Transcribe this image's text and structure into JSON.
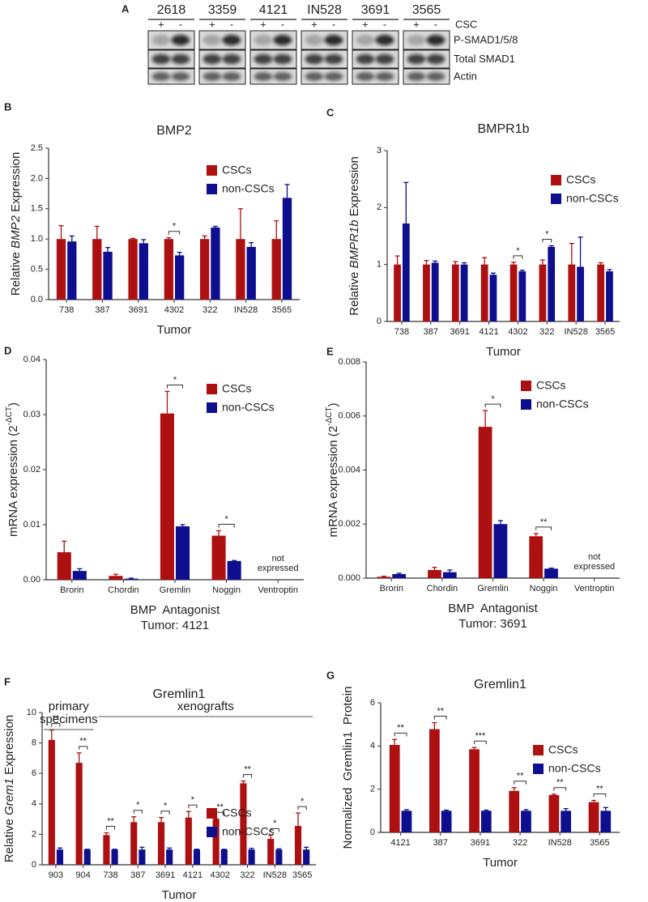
{
  "blot": {
    "panel": "A",
    "samples": [
      "2618",
      "3359",
      "4121",
      "IN528",
      "3691",
      "3565"
    ],
    "signs": [
      "+",
      "-"
    ],
    "row_header": "CSC",
    "rows": [
      "P-SMAD1/5/8",
      "Total SMAD1",
      "Actin"
    ]
  },
  "chart_data": [
    {
      "type": "bar",
      "panel": "B",
      "title": "BMP2",
      "ylabel": [
        {
          "text": "Relative "
        },
        {
          "text": "BMP2",
          "style": "italic"
        },
        {
          "text": " Expression"
        }
      ],
      "xlabel": "Tumor",
      "categories": [
        "738",
        "387",
        "3691",
        "4302",
        "322",
        "IN528",
        "3565"
      ],
      "series": [
        {
          "name": "CSCs",
          "color": "#ad1010",
          "values": [
            1,
            1,
            1,
            1,
            1,
            1,
            1
          ],
          "errors": [
            0.22,
            0.21,
            0.01,
            0.02,
            0.05,
            0.5,
            0.3
          ]
        },
        {
          "name": "non-CSCs",
          "color": "#0d0f8f",
          "values": [
            0.96,
            0.79,
            0.93,
            0.73,
            1.19,
            0.87,
            1.68
          ],
          "errors": [
            0.09,
            0.07,
            0.06,
            0.05,
            0.02,
            0.07,
            0.22
          ]
        }
      ],
      "significance": [
        null,
        null,
        null,
        "*",
        null,
        null,
        null
      ],
      "ylim": [
        0,
        2.5
      ],
      "yticks": [
        {
          "value": 0,
          "label": "0.0"
        },
        0.5,
        {
          "value": 1,
          "label": "1.0"
        },
        1.5,
        {
          "value": 2,
          "label": "2.0"
        },
        2.5
      ],
      "legend": "upper right"
    },
    {
      "type": "bar",
      "panel": "C",
      "title": "BMPR1b",
      "ylabel": [
        {
          "text": "Relative "
        },
        {
          "text": "BMPR1b",
          "style": "italic"
        },
        {
          "text": " Expression"
        }
      ],
      "xlabel": "Tumor",
      "categories": [
        "738",
        "387",
        "3691",
        "4121",
        "4302",
        "322",
        "IN528",
        "3565"
      ],
      "series": [
        {
          "name": "CSCs",
          "color": "#ad1010",
          "values": [
            1,
            1,
            1,
            1,
            1,
            1,
            1,
            1
          ],
          "errors": [
            0.15,
            0.07,
            0.05,
            0.12,
            0.04,
            0.08,
            0.37,
            0.03
          ]
        },
        {
          "name": "non-CSCs",
          "color": "#0d0f8f",
          "values": [
            1.72,
            1.03,
            1.0,
            0.82,
            0.88,
            1.31,
            0.96,
            0.88
          ],
          "errors": [
            0.72,
            0.03,
            0.03,
            0.03,
            0.02,
            0.02,
            0.52,
            0.03
          ]
        }
      ],
      "significance": [
        null,
        null,
        null,
        null,
        "*",
        "*",
        null,
        null
      ],
      "ylim": [
        0,
        3
      ],
      "yticks": [
        0,
        1,
        2,
        3
      ],
      "legend": "upper right"
    },
    {
      "type": "bar",
      "panel": "D",
      "ylabel": [
        {
          "text": "mRNA expression (2"
        },
        {
          "text": "-ΔCT",
          "style": "sup"
        },
        {
          "text": ")"
        }
      ],
      "xlabel": "BMP  Antagonist",
      "note": "Tumor: 4121",
      "annotation": "not expressed",
      "categories": [
        "Brorin",
        "Chordin",
        "Gremlin",
        "Noggin",
        "Ventroptin"
      ],
      "series": [
        {
          "name": "CSCs",
          "color": "#ad1010",
          "values": [
            0.005,
            0.0007,
            0.0302,
            0.008,
            null
          ],
          "errors": [
            0.002,
            0.0003,
            0.004,
            0.0009,
            null
          ]
        },
        {
          "name": "non-CSCs",
          "color": "#0d0f8f",
          "values": [
            0.0016,
            0.0002,
            0.0097,
            0.0034,
            null
          ],
          "errors": [
            0.0004,
            0.0001,
            0.0003,
            0.0001,
            null
          ]
        }
      ],
      "significance": [
        null,
        null,
        "*",
        "*",
        null
      ],
      "ylim": [
        0,
        0.04
      ],
      "yticks": [
        {
          "value": 0,
          "label": "0.00"
        },
        0.01,
        0.02,
        0.03,
        0.04
      ],
      "legend": "upper right"
    },
    {
      "type": "bar",
      "panel": "E",
      "ylabel": [
        {
          "text": "mRNA expression (2"
        },
        {
          "text": "-ΔCT",
          "style": "sup"
        },
        {
          "text": ")"
        }
      ],
      "xlabel": "BMP  Antagonist",
      "note": "Tumor: 3691",
      "annotation": "not expressed",
      "categories": [
        "Brorin",
        "Chordin",
        "Gremlin",
        "Noggin",
        "Ventroptin"
      ],
      "series": [
        {
          "name": "CSCs",
          "color": "#ad1010",
          "values": [
            5e-05,
            0.0003,
            0.0056,
            0.00155,
            null
          ],
          "errors": [
            2e-05,
            0.0001,
            0.0006,
            0.0001,
            null
          ]
        },
        {
          "name": "non-CSCs",
          "color": "#0d0f8f",
          "values": [
            0.00015,
            0.00022,
            0.002,
            0.00035,
            null
          ],
          "errors": [
            3e-05,
            8e-05,
            0.00013,
            2e-05,
            null
          ]
        }
      ],
      "significance": [
        null,
        null,
        "*",
        "**",
        null
      ],
      "ylim": [
        0,
        0.008
      ],
      "yticks": [
        {
          "value": 0,
          "label": "0.000"
        },
        0.002,
        0.004,
        0.006,
        0.008
      ],
      "legend": "upper right"
    },
    {
      "type": "bar",
      "panel": "F",
      "title": "Gremlin1",
      "ylabel": [
        {
          "text": "Relative "
        },
        {
          "text": "Grem1",
          "style": "italic"
        },
        {
          "text": " Expression"
        }
      ],
      "xlabel": "Tumor",
      "groups": [
        {
          "label": "primary specimens",
          "size": 2
        },
        {
          "label": "xenografts",
          "size": 8
        }
      ],
      "categories": [
        "903",
        "904",
        "738",
        "387",
        "3691",
        "4121",
        "4302",
        "322",
        "IN528",
        "3565"
      ],
      "series": [
        {
          "name": "CSCs",
          "color": "#ad1010",
          "values": [
            8.2,
            6.7,
            1.95,
            2.8,
            2.8,
            3.1,
            3.0,
            5.35,
            1.7,
            2.55
          ],
          "errors": [
            0.65,
            0.65,
            0.15,
            0.35,
            0.3,
            0.4,
            0.02,
            0.15,
            0.25,
            0.85
          ]
        },
        {
          "name": "non-CSCs",
          "color": "#0d0f8f",
          "values": [
            1,
            1,
            1,
            1,
            1,
            1,
            1,
            1,
            1,
            1
          ],
          "errors": [
            0.1,
            0.02,
            0.02,
            0.15,
            0.1,
            0.02,
            0.02,
            0.08,
            0.05,
            0.15
          ]
        }
      ],
      "significance": [
        "**",
        "**",
        "**",
        "*",
        "*",
        "*",
        "**",
        "**",
        "*",
        "*"
      ],
      "ylim": [
        0,
        10
      ],
      "yticks": [
        0,
        2,
        4,
        6,
        8,
        10
      ],
      "legend": "right"
    },
    {
      "type": "bar",
      "panel": "G",
      "title": "Gremlin1",
      "ylabel": [
        {
          "text": "Normalized  Gremlin1  Protein"
        }
      ],
      "xlabel": "Tumor",
      "categories": [
        "4121",
        "387",
        "3691",
        "322",
        "IN528",
        "3565"
      ],
      "series": [
        {
          "name": "CSCs",
          "color": "#ad1010",
          "values": [
            4.05,
            4.78,
            3.85,
            1.92,
            1.73,
            1.4
          ],
          "errors": [
            0.25,
            0.3,
            0.08,
            0.15,
            0.04,
            0.08
          ]
        },
        {
          "name": "non-CSCs",
          "color": "#0d0f8f",
          "values": [
            1,
            1,
            1,
            1,
            1,
            1
          ],
          "errors": [
            0.05,
            0.03,
            0.03,
            0.05,
            0.1,
            0.15
          ]
        }
      ],
      "significance": [
        "**",
        "**",
        "***",
        "**",
        "**",
        "**"
      ],
      "ylim": [
        0,
        6
      ],
      "yticks": [
        0,
        2,
        4,
        6
      ],
      "legend": "upper right"
    }
  ]
}
